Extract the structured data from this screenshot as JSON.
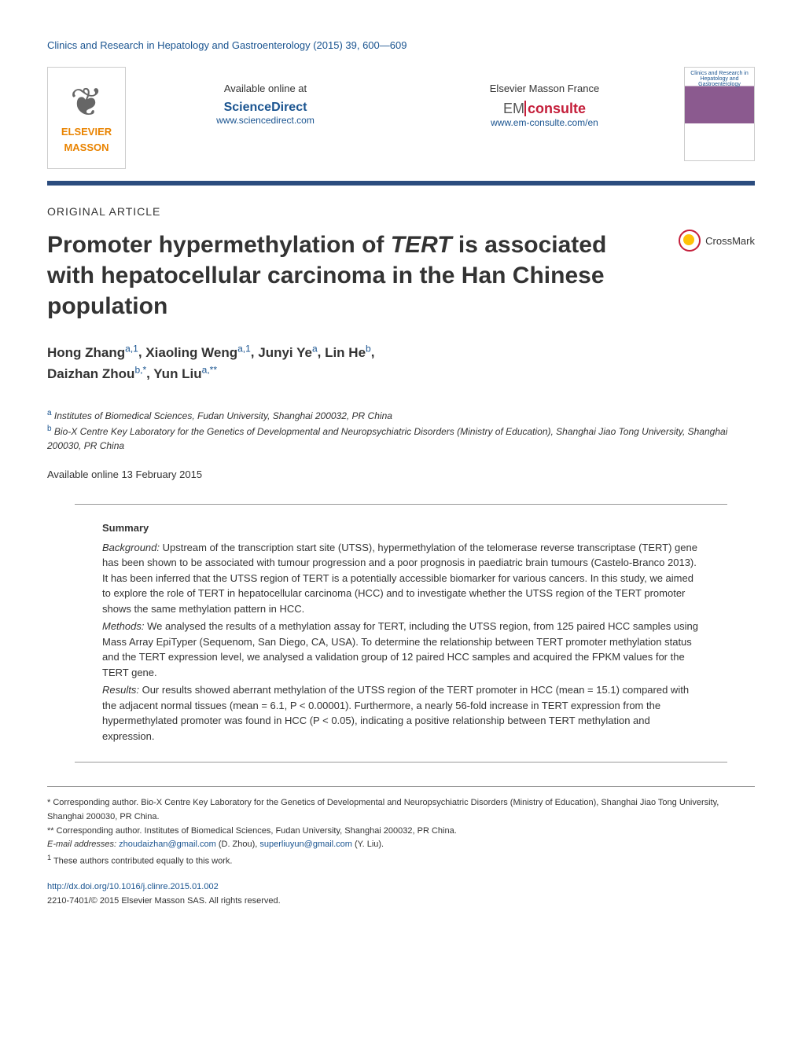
{
  "journal_header": "Clinics and Research in Hepatology and Gastroenterology (2015) 39, 600—609",
  "logos": {
    "elsevier_brand1": "ELSEVIER",
    "elsevier_brand2": "MASSON",
    "available_at": "Available online at",
    "sciencedirect": "ScienceDirect",
    "sciencedirect_url": "www.sciencedirect.com",
    "elsevier_france": "Elsevier Masson France",
    "em": "EM",
    "consulte": "consulte",
    "emconsulte_url": "www.em-consulte.com/en",
    "cover_title": "Clinics and Research in Hepatology and Gastroenterology"
  },
  "article_type": "ORIGINAL ARTICLE",
  "title_pre": "Promoter hypermethylation of ",
  "title_gene": "TERT",
  "title_post": " is associated with hepatocellular carcinoma in the Han Chinese population",
  "crossmark_label": "CrossMark",
  "authors_html": "Hong Zhang|a,1|, Xiaoling Weng|a,1|, Junyi Ye|a|, Lin He|b|, Daizhan Zhou|b,*|, Yun Liu|a,**|",
  "authors": [
    {
      "name": "Hong Zhang",
      "sup": "a,1"
    },
    {
      "name": "Xiaoling Weng",
      "sup": "a,1"
    },
    {
      "name": "Junyi Ye",
      "sup": "a"
    },
    {
      "name": "Lin He",
      "sup": "b"
    },
    {
      "name": "Daizhan Zhou",
      "sup": "b,*"
    },
    {
      "name": "Yun Liu",
      "sup": "a,**"
    }
  ],
  "affiliations": {
    "a_sup": "a",
    "a_text": " Institutes of Biomedical Sciences, Fudan University, Shanghai 200032, PR China",
    "b_sup": "b",
    "b_text": " Bio-X Centre Key Laboratory for the Genetics of Developmental and Neuropsychiatric Disorders (Ministry of Education), Shanghai Jiao Tong University, Shanghai 200030, PR China"
  },
  "available_online": "Available online 13 February 2015",
  "summary": {
    "heading": "Summary",
    "background_label": "Background:",
    "background_text": " Upstream of the transcription start site (UTSS), hypermethylation of the telomerase reverse transcriptase (TERT) gene has been shown to be associated with tumour progression and a poor prognosis in paediatric brain tumours (Castelo-Branco 2013). It has been inferred that the UTSS region of TERT is a potentially accessible biomarker for various cancers. In this study, we aimed to explore the role of TERT in hepatocellular carcinoma (HCC) and to investigate whether the UTSS region of the TERT promoter shows the same methylation pattern in HCC.",
    "methods_label": "Methods:",
    "methods_text": " We analysed the results of a methylation assay for TERT, including the UTSS region, from 125 paired HCC samples using Mass Array EpiTyper (Sequenom, San Diego, CA, USA). To determine the relationship between TERT promoter methylation status and the TERT expression level, we analysed a validation group of 12 paired HCC samples and acquired the FPKM values for the TERT gene.",
    "results_label": "Results:",
    "results_text": " Our results showed aberrant methylation of the UTSS region of the TERT promoter in HCC (mean = 15.1) compared with the adjacent normal tissues (mean = 6.1, P < 0.00001). Furthermore, a nearly 56-fold increase in TERT expression from the hypermethylated promoter was found in HCC (P < 0.05), indicating a positive relationship between TERT methylation and expression."
  },
  "footnotes": {
    "corr1_marker": "*",
    "corr1_text": " Corresponding author. Bio-X Centre Key Laboratory for the Genetics of Developmental and Neuropsychiatric Disorders (Ministry of Education), Shanghai Jiao Tong University, Shanghai 200030, PR China.",
    "corr2_marker": "**",
    "corr2_text": " Corresponding author. Institutes of Biomedical Sciences, Fudan University, Shanghai 200032, PR China.",
    "email_label": "E-mail addresses: ",
    "email1": "zhoudaizhan@gmail.com",
    "email1_who": " (D. Zhou), ",
    "email2": "superliuyun@gmail.com",
    "email2_who": " (Y. Liu).",
    "equal_marker": "1",
    "equal_text": " These authors contributed equally to this work."
  },
  "doi": {
    "url": "http://dx.doi.org/10.1016/j.clinre.2015.01.002",
    "copyright": "2210-7401/© 2015 Elsevier Masson SAS. All rights reserved."
  },
  "colors": {
    "link": "#1a5490",
    "divider": "#2b4c7e",
    "orange": "#e98300",
    "red": "#c41e3a"
  }
}
